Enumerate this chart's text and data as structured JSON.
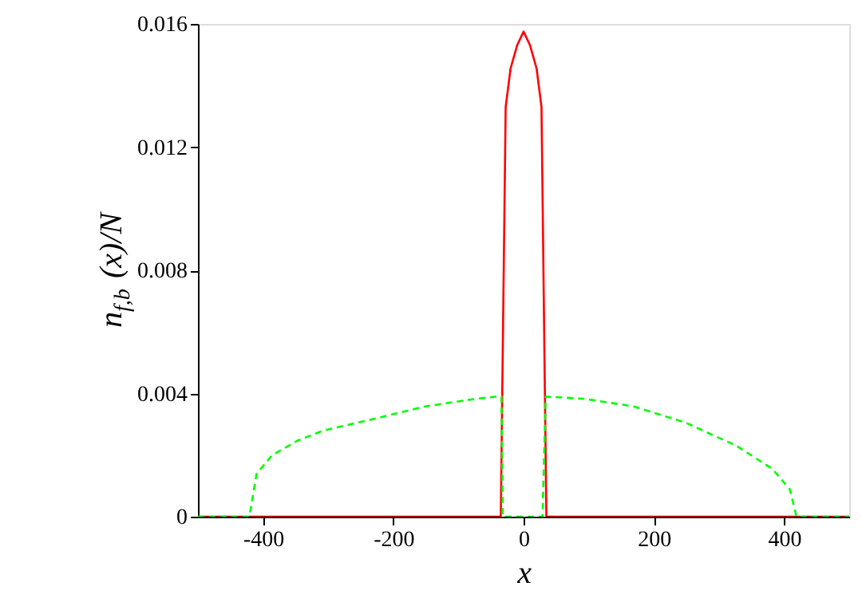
{
  "chart_data": {
    "type": "line",
    "xlabel": "x",
    "ylabel": "n$_{f,b}$(x)/N",
    "xlim": [
      -500,
      500
    ],
    "xticks": [
      -400,
      -200,
      0,
      200,
      400
    ],
    "ylim": [
      0,
      0.016
    ],
    "yticks": [
      0,
      0.004,
      0.008,
      0.012,
      0.016
    ],
    "grid": false,
    "marker": "none",
    "series": [
      {
        "color": "#ff0000",
        "line_style": "solid",
        "x": [
          -500,
          -35,
          -27.5,
          -20,
          -10,
          0,
          10,
          20,
          27.5,
          35,
          500
        ],
        "values": [
          0,
          0,
          0.0133,
          0.01455,
          0.0153,
          0.01575,
          0.0153,
          0.01455,
          0.0133,
          0,
          0
        ]
      },
      {
        "color": "#00ff00",
        "line_style": "dashed",
        "x": [
          -500,
          -421,
          -410,
          -386,
          -347,
          -307,
          -229,
          -151,
          -73,
          -41,
          -34,
          -32,
          29,
          34,
          92,
          169,
          249,
          327,
          382,
          409,
          419,
          500
        ],
        "values": [
          0,
          0,
          0.00139,
          0.002,
          0.00247,
          0.0028,
          0.00318,
          0.00358,
          0.00383,
          0.0039,
          0.0039,
          0,
          0,
          0.0039,
          0.00383,
          0.00358,
          0.00305,
          0.0023,
          0.00155,
          0.00088,
          0,
          0
        ]
      }
    ]
  }
}
